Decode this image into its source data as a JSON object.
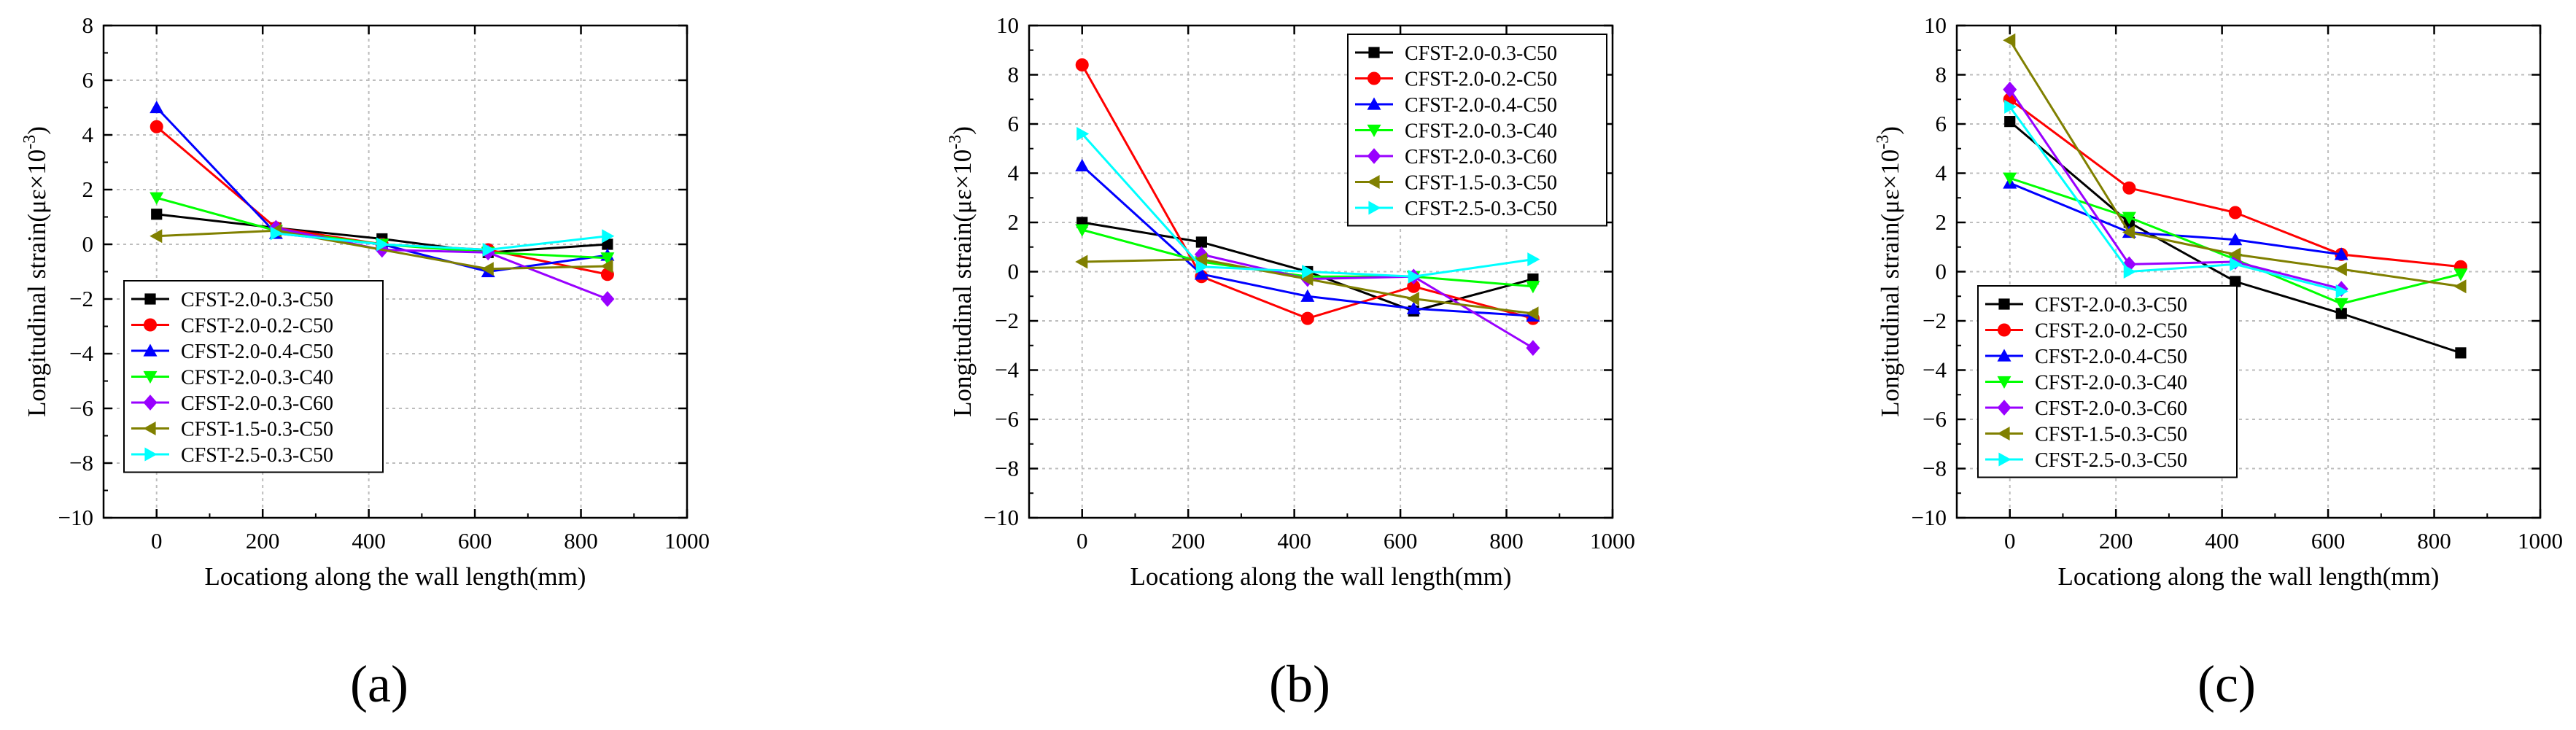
{
  "chart_data": [
    {
      "type": "line",
      "panel_label": "(a)",
      "xlabel": "Locationg along the wall length(mm)",
      "ylabel_text": "Longitudinal strain(με×10",
      "ylabel_exp": "-3",
      "ylabel_close": ")",
      "xlim": [
        -100,
        1000
      ],
      "ylim": [
        -10,
        8
      ],
      "xticks": [
        0,
        200,
        400,
        600,
        800,
        1000
      ],
      "yticks": [
        -10,
        -8,
        -6,
        -4,
        -2,
        0,
        2,
        4,
        6,
        8
      ],
      "grid": true,
      "legend_position": "bottom-left",
      "x": [
        0,
        225,
        425,
        625,
        850
      ],
      "series": [
        {
          "name": "CFST-2.0-0.3-C50",
          "color": "#000000",
          "marker": "square",
          "values": [
            1.1,
            0.6,
            0.2,
            -0.3,
            0.0
          ]
        },
        {
          "name": "CFST-2.0-0.2-C50",
          "color": "#ff0000",
          "marker": "circle",
          "values": [
            4.3,
            0.6,
            0.0,
            -0.2,
            -1.1
          ]
        },
        {
          "name": "CFST-2.0-0.4-C50",
          "color": "#0000ff",
          "marker": "triangle-up",
          "values": [
            5.0,
            0.4,
            0.0,
            -1.0,
            -0.4
          ]
        },
        {
          "name": "CFST-2.0-0.3-C40",
          "color": "#00ff00",
          "marker": "triangle-down",
          "values": [
            1.7,
            0.5,
            0.0,
            -0.3,
            -0.5
          ]
        },
        {
          "name": "CFST-2.0-0.3-C60",
          "color": "#9900ff",
          "marker": "diamond",
          "values": [
            null,
            0.6,
            -0.2,
            -0.3,
            -2.0
          ]
        },
        {
          "name": "CFST-1.5-0.3-C50",
          "color": "#808000",
          "marker": "triangle-left",
          "values": [
            0.3,
            0.5,
            null,
            -0.9,
            -0.8
          ]
        },
        {
          "name": "CFST-2.5-0.3-C50",
          "color": "#00ffff",
          "marker": "triangle-right",
          "values": [
            null,
            0.4,
            0.0,
            -0.2,
            0.3
          ]
        }
      ]
    },
    {
      "type": "line",
      "panel_label": "(b)",
      "xlabel": "Locationg along the wall length(mm)",
      "ylabel_text": "Longitudinal strain(με×10",
      "ylabel_exp": "-3",
      "ylabel_close": ")",
      "xlim": [
        -100,
        1000
      ],
      "ylim": [
        -10,
        10
      ],
      "xticks": [
        0,
        200,
        400,
        600,
        800,
        1000
      ],
      "yticks": [
        -10,
        -8,
        -6,
        -4,
        -2,
        0,
        2,
        4,
        6,
        8,
        10
      ],
      "grid": true,
      "legend_position": "top-right",
      "x": [
        0,
        225,
        425,
        625,
        850
      ],
      "series": [
        {
          "name": "CFST-2.0-0.3-C50",
          "color": "#000000",
          "marker": "square",
          "values": [
            2.0,
            1.2,
            0.0,
            -1.6,
            -0.3
          ]
        },
        {
          "name": "CFST-2.0-0.2-C50",
          "color": "#ff0000",
          "marker": "circle",
          "values": [
            8.4,
            -0.2,
            -1.9,
            -0.6,
            -1.9
          ]
        },
        {
          "name": "CFST-2.0-0.4-C50",
          "color": "#0000ff",
          "marker": "triangle-up",
          "values": [
            4.3,
            -0.1,
            -1.0,
            -1.5,
            -1.8
          ]
        },
        {
          "name": "CFST-2.0-0.3-C40",
          "color": "#00ff00",
          "marker": "triangle-down",
          "values": [
            1.7,
            0.4,
            -0.2,
            -0.2,
            -0.6
          ]
        },
        {
          "name": "CFST-2.0-0.3-C60",
          "color": "#9900ff",
          "marker": "diamond",
          "values": [
            null,
            0.7,
            -0.3,
            -0.2,
            -3.1
          ]
        },
        {
          "name": "CFST-1.5-0.3-C50",
          "color": "#808000",
          "marker": "triangle-left",
          "values": [
            0.4,
            0.5,
            -0.3,
            -1.1,
            -1.7
          ]
        },
        {
          "name": "CFST-2.5-0.3-C50",
          "color": "#00ffff",
          "marker": "triangle-right",
          "values": [
            5.6,
            0.2,
            0.0,
            -0.2,
            0.5
          ]
        }
      ]
    },
    {
      "type": "line",
      "panel_label": "(c)",
      "xlabel": "Locationg along the wall length(mm)",
      "ylabel_text": "Longitudinal strain(με×10",
      "ylabel_exp": "-3",
      "ylabel_close": ")",
      "xlim": [
        -100,
        1000
      ],
      "ylim": [
        -10,
        10
      ],
      "xticks": [
        0,
        200,
        400,
        600,
        800,
        1000
      ],
      "yticks": [
        -10,
        -8,
        -6,
        -4,
        -2,
        0,
        2,
        4,
        6,
        8,
        10
      ],
      "grid": true,
      "legend_position": "bottom-left",
      "x": [
        0,
        225,
        425,
        625,
        850
      ],
      "series": [
        {
          "name": "CFST-2.0-0.3-C50",
          "color": "#000000",
          "marker": "square",
          "values": [
            6.1,
            2.0,
            -0.4,
            -1.7,
            -3.3
          ]
        },
        {
          "name": "CFST-2.0-0.2-C50",
          "color": "#ff0000",
          "marker": "circle",
          "values": [
            7.0,
            3.4,
            2.4,
            0.7,
            0.2
          ]
        },
        {
          "name": "CFST-2.0-0.4-C50",
          "color": "#0000ff",
          "marker": "triangle-up",
          "values": [
            3.6,
            1.6,
            1.3,
            0.7,
            null
          ]
        },
        {
          "name": "CFST-2.0-0.3-C40",
          "color": "#00ff00",
          "marker": "triangle-down",
          "values": [
            3.8,
            2.2,
            0.5,
            -1.3,
            -0.1
          ]
        },
        {
          "name": "CFST-2.0-0.3-C60",
          "color": "#9900ff",
          "marker": "diamond",
          "values": [
            7.4,
            0.3,
            0.4,
            -0.7,
            null
          ]
        },
        {
          "name": "CFST-1.5-0.3-C50",
          "color": "#808000",
          "marker": "triangle-left",
          "values": [
            9.4,
            1.6,
            0.7,
            0.1,
            -0.6
          ]
        },
        {
          "name": "CFST-2.5-0.3-C50",
          "color": "#00ffff",
          "marker": "triangle-right",
          "values": [
            6.7,
            0.0,
            0.3,
            -0.8,
            null
          ]
        }
      ]
    }
  ]
}
